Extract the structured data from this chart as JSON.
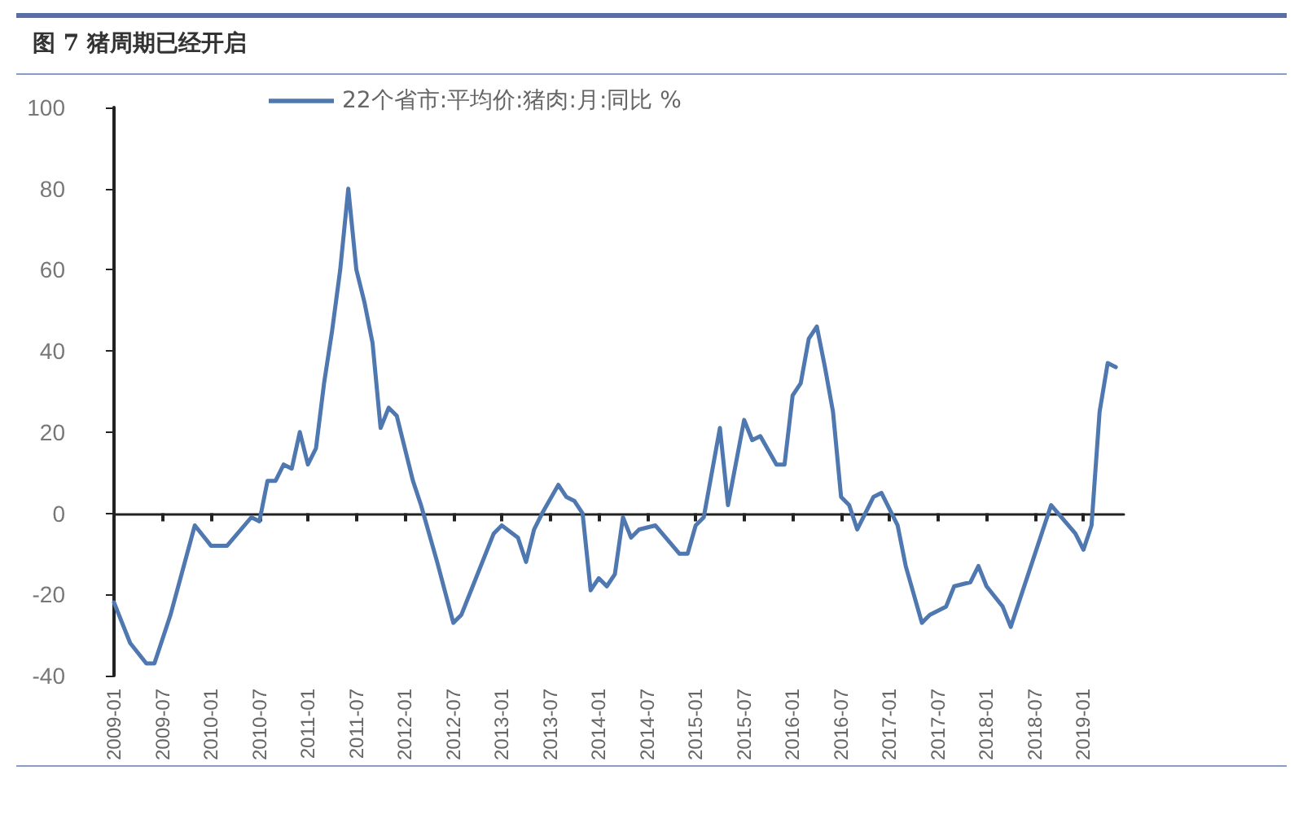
{
  "chart_data": {
    "type": "line",
    "title": "图 7   猪周期已经开启",
    "legend": "top",
    "marker": "none",
    "line_style": "solid",
    "xlim": [
      "2009-01",
      "2019-06"
    ],
    "xticks": [
      "2009-01",
      "2009-07",
      "2010-01",
      "2010-07",
      "2011-01",
      "2011-07",
      "2012-01",
      "2012-07",
      "2013-01",
      "2013-07",
      "2014-01",
      "2014-07",
      "2015-01",
      "2015-07",
      "2016-01",
      "2016-07",
      "2017-01",
      "2017-07",
      "2018-01",
      "2018-07",
      "2019-01"
    ],
    "ylim": [
      -40,
      100
    ],
    "yticks": [
      -40,
      -20,
      0,
      20,
      40,
      60,
      80,
      100
    ],
    "series": [
      {
        "name": "22个省市:平均价:猪肉:月:同比 %",
        "color": "#4f78b0",
        "x": [
          "2009-01",
          "2009-03",
          "2009-05",
          "2009-06",
          "2009-08",
          "2009-11",
          "2010-01",
          "2010-03",
          "2010-06",
          "2010-07",
          "2010-08",
          "2010-09",
          "2010-10",
          "2010-11",
          "2010-12",
          "2011-01",
          "2011-02",
          "2011-03",
          "2011-04",
          "2011-05",
          "2011-06",
          "2011-07",
          "2011-08",
          "2011-09",
          "2011-10",
          "2011-11",
          "2011-12",
          "2012-02",
          "2012-03",
          "2012-05",
          "2012-07",
          "2012-08",
          "2012-09",
          "2012-12",
          "2013-01",
          "2013-03",
          "2013-04",
          "2013-05",
          "2013-06",
          "2013-08",
          "2013-09",
          "2013-10",
          "2013-11",
          "2013-12",
          "2014-01",
          "2014-02",
          "2014-03",
          "2014-04",
          "2014-05",
          "2014-06",
          "2014-08",
          "2014-11",
          "2014-12",
          "2015-01",
          "2015-02",
          "2015-04",
          "2015-05",
          "2015-07",
          "2015-08",
          "2015-09",
          "2015-11",
          "2015-12",
          "2016-01",
          "2016-02",
          "2016-03",
          "2016-04",
          "2016-05",
          "2016-06",
          "2016-07",
          "2016-08",
          "2016-09",
          "2016-11",
          "2016-12",
          "2017-02",
          "2017-03",
          "2017-05",
          "2017-06",
          "2017-08",
          "2017-09",
          "2017-11",
          "2017-12",
          "2018-01",
          "2018-03",
          "2018-04",
          "2018-07",
          "2018-09",
          "2018-12",
          "2019-01",
          "2019-02",
          "2019-03",
          "2019-04",
          "2019-05"
        ],
        "values": [
          -22,
          -32,
          -37,
          -37,
          -25,
          -3,
          -8,
          -8,
          -1,
          -2,
          8,
          8,
          12,
          11,
          20,
          12,
          16,
          32,
          45,
          60,
          80,
          60,
          52,
          42,
          21,
          26,
          24,
          8,
          2,
          -12,
          -27,
          -25,
          -20,
          -5,
          -3,
          -6,
          -12,
          -4,
          0,
          7,
          4,
          3,
          0,
          -19,
          -16,
          -18,
          -15,
          -1,
          -6,
          -4,
          -3,
          -10,
          -10,
          -3,
          -1,
          21,
          2,
          23,
          18,
          19,
          12,
          12,
          29,
          32,
          43,
          46,
          36,
          25,
          4,
          2,
          -4,
          4,
          5,
          -3,
          -13,
          -27,
          -25,
          -23,
          -18,
          -17,
          -13,
          -18,
          -23,
          -28,
          -10,
          2,
          -5,
          -9,
          -3,
          25,
          37,
          36
        ]
      }
    ]
  }
}
